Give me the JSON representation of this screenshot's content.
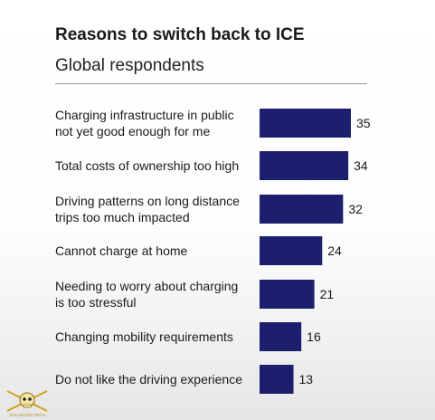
{
  "chart_data": {
    "type": "bar",
    "orientation": "horizontal",
    "title": "Reasons to switch back to ICE",
    "subtitle": "Global respondents",
    "categories": [
      [
        "Charging infrastructure in public",
        "not yet good enough for me"
      ],
      [
        "Total costs of ownership too high"
      ],
      [
        "Driving patterns on long distance",
        "trips too much impacted"
      ],
      [
        "Cannot charge at home"
      ],
      [
        "Needing to worry about charging",
        "is too stressful"
      ],
      [
        "Changing mobility requirements"
      ],
      [
        "Do not like the driving experience"
      ]
    ],
    "values": [
      35,
      34,
      32,
      24,
      21,
      16,
      13
    ],
    "data_labels": [
      "35",
      "34",
      "32",
      "24",
      "21",
      "16",
      "13"
    ],
    "xlim": [
      0,
      35
    ],
    "grid": false,
    "legend": "none",
    "bar_color": "#1c1f6e"
  },
  "logo": {
    "icon": "skull-crossed-swords-icon",
    "caption": "TAXI NOTES TECH",
    "color": "#d4a017"
  }
}
